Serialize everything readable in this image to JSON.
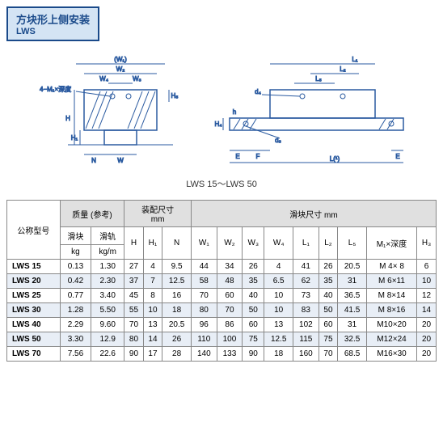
{
  "title": {
    "main": "方块形上侧安装",
    "sub": "LWS"
  },
  "caption": "LWS 15～LWS 50",
  "diagram_labels": {
    "left": {
      "w1": "(W₁)",
      "w2": "W₂",
      "w4": "W₄",
      "w3": "W₃",
      "m1": "4−M₁×深度",
      "h5": "H₅",
      "h": "H",
      "h1": "H₁",
      "n": "N",
      "w": "W"
    },
    "right": {
      "l1": "L₁",
      "l2": "L₂",
      "l5": "L₅",
      "d4": "d₄",
      "h4": "H₄",
      "h": "h",
      "d3": "d₃",
      "e1": "E",
      "f": "F",
      "l": "L(¹)",
      "e2": "E"
    }
  },
  "headers": {
    "model": "公称型号",
    "mass": "质量 (参考)",
    "mass_block": "滑块",
    "mass_block_unit": "kg",
    "mass_rail": "滑轨",
    "mass_rail_unit": "kg/m",
    "fit": "装配尺寸",
    "fit_unit": "mm",
    "block": "滑块尺寸 mm",
    "H": "H",
    "H1": "H₁",
    "N": "N",
    "W1": "W₁",
    "W2": "W₂",
    "W3": "W₃",
    "W4": "W₄",
    "L1": "L₁",
    "L2": "L₂",
    "L5": "L₅",
    "M1": "M₁×深度",
    "H3": "H₃"
  },
  "rows": [
    {
      "model": "LWS 15",
      "mb": "0.13",
      "mr": "1.30",
      "H": "27",
      "H1": "4",
      "N": "9.5",
      "W1": "44",
      "W2": "34",
      "W3": "26",
      "W4": "4",
      "L1": "41",
      "L2": "26",
      "L5": "20.5",
      "M1": "M 4× 8",
      "H3": "6"
    },
    {
      "model": "LWS 20",
      "mb": "0.42",
      "mr": "2.30",
      "H": "37",
      "H1": "7",
      "N": "12.5",
      "W1": "58",
      "W2": "48",
      "W3": "35",
      "W4": "6.5",
      "L1": "62",
      "L2": "35",
      "L5": "31",
      "M1": "M 6×11",
      "H3": "10"
    },
    {
      "model": "LWS 25",
      "mb": "0.77",
      "mr": "3.40",
      "H": "45",
      "H1": "8",
      "N": "16",
      "W1": "70",
      "W2": "60",
      "W3": "40",
      "W4": "10",
      "L1": "73",
      "L2": "40",
      "L5": "36.5",
      "M1": "M 8×14",
      "H3": "12"
    },
    {
      "model": "LWS 30",
      "mb": "1.28",
      "mr": "5.50",
      "H": "55",
      "H1": "10",
      "N": "18",
      "W1": "80",
      "W2": "70",
      "W3": "50",
      "W4": "10",
      "L1": "83",
      "L2": "50",
      "L5": "41.5",
      "M1": "M 8×16",
      "H3": "14"
    },
    {
      "model": "LWS 40",
      "mb": "2.29",
      "mr": "9.60",
      "H": "70",
      "H1": "13",
      "N": "20.5",
      "W1": "96",
      "W2": "86",
      "W3": "60",
      "W4": "13",
      "L1": "102",
      "L2": "60",
      "L5": "31",
      "M1": "M10×20",
      "H3": "20"
    },
    {
      "model": "LWS 50",
      "mb": "3.30",
      "mr": "12.9",
      "H": "80",
      "H1": "14",
      "N": "26",
      "W1": "110",
      "W2": "100",
      "W3": "75",
      "W4": "12.5",
      "L1": "115",
      "L2": "75",
      "L5": "32.5",
      "M1": "M12×24",
      "H3": "20"
    },
    {
      "model": "LWS 70",
      "mb": "7.56",
      "mr": "22.6",
      "H": "90",
      "H1": "17",
      "N": "28",
      "W1": "140",
      "W2": "133",
      "W3": "90",
      "W4": "18",
      "L1": "160",
      "L2": "70",
      "L5": "68.5",
      "M1": "M16×30",
      "H3": "20"
    }
  ],
  "style": {
    "line": "#2a5aa0",
    "thin": "#333",
    "altbg": "#e8eef6"
  }
}
